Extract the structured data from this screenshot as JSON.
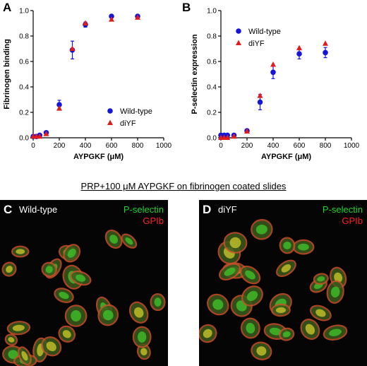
{
  "chart_data": [
    {
      "type": "scatter",
      "panel": "A",
      "title": "",
      "xlabel": "AYPGKF (μM)",
      "ylabel": "Fibrinogen binding",
      "xlim": [
        0,
        1000
      ],
      "ylim": [
        0,
        1.0
      ],
      "xticks": [
        "0",
        "200",
        "400",
        "600",
        "800",
        "1000"
      ],
      "yticks": [
        "0.0",
        "0.2",
        "0.4",
        "0.6",
        "0.8",
        "1.0"
      ],
      "legend": "bottom-right",
      "series": [
        {
          "name": "Wild-type",
          "color": "#1616d8",
          "marker": "circle",
          "x": [
            0,
            25,
            50,
            100,
            200,
            300,
            400,
            600,
            800
          ],
          "y": [
            0.01,
            0.01,
            0.02,
            0.04,
            0.26,
            0.69,
            0.89,
            0.955,
            0.955
          ],
          "err": [
            0,
            0,
            0,
            0.01,
            0.035,
            0.07,
            0.02,
            0.01,
            0.01
          ]
        },
        {
          "name": "diYF",
          "color": "#e01c1c",
          "marker": "triangle",
          "x": [
            0,
            25,
            50,
            100,
            200,
            300,
            400,
            600,
            800
          ],
          "y": [
            0.01,
            0.01,
            0.01,
            0.03,
            0.23,
            0.7,
            0.9,
            0.93,
            0.945
          ],
          "err": [
            0,
            0,
            0,
            0,
            0,
            0,
            0,
            0,
            0
          ]
        }
      ]
    },
    {
      "type": "scatter",
      "panel": "B",
      "title": "",
      "xlabel": "AYPGKF (μM)",
      "ylabel": "P-selectin expression",
      "xlim": [
        0,
        1000
      ],
      "ylim": [
        0,
        1.0
      ],
      "xticks": [
        "0",
        "200",
        "400",
        "600",
        "800",
        "1000"
      ],
      "yticks": [
        "0.0",
        "0.2",
        "0.4",
        "0.6",
        "0.8",
        "1.0"
      ],
      "legend": "top-left",
      "series": [
        {
          "name": "Wild-type",
          "color": "#1616d8",
          "marker": "circle",
          "x": [
            0,
            25,
            50,
            100,
            200,
            300,
            400,
            600,
            800
          ],
          "y": [
            0.02,
            0.02,
            0.02,
            0.02,
            0.055,
            0.28,
            0.515,
            0.66,
            0.67
          ],
          "err": [
            0,
            0,
            0,
            0,
            0.01,
            0.06,
            0.05,
            0.04,
            0.04
          ]
        },
        {
          "name": "diYF",
          "color": "#e01c1c",
          "marker": "triangle",
          "x": [
            0,
            25,
            50,
            100,
            200,
            300,
            400,
            600,
            800
          ],
          "y": [
            0.0,
            0.0,
            0.0,
            0.01,
            0.05,
            0.33,
            0.575,
            0.705,
            0.74
          ],
          "err": [
            0,
            0,
            0,
            0,
            0,
            0,
            0,
            0,
            0
          ]
        }
      ]
    }
  ],
  "caption": "PRP+100 μM AYPGKF on fibrinogen coated slides",
  "micrographs": [
    {
      "panel": "C",
      "condition": "Wild-type",
      "green_label": "P-selectin",
      "red_label": "GPIb"
    },
    {
      "panel": "D",
      "condition": "diYF",
      "green_label": "P-selectin",
      "red_label": "GPIb"
    }
  ]
}
